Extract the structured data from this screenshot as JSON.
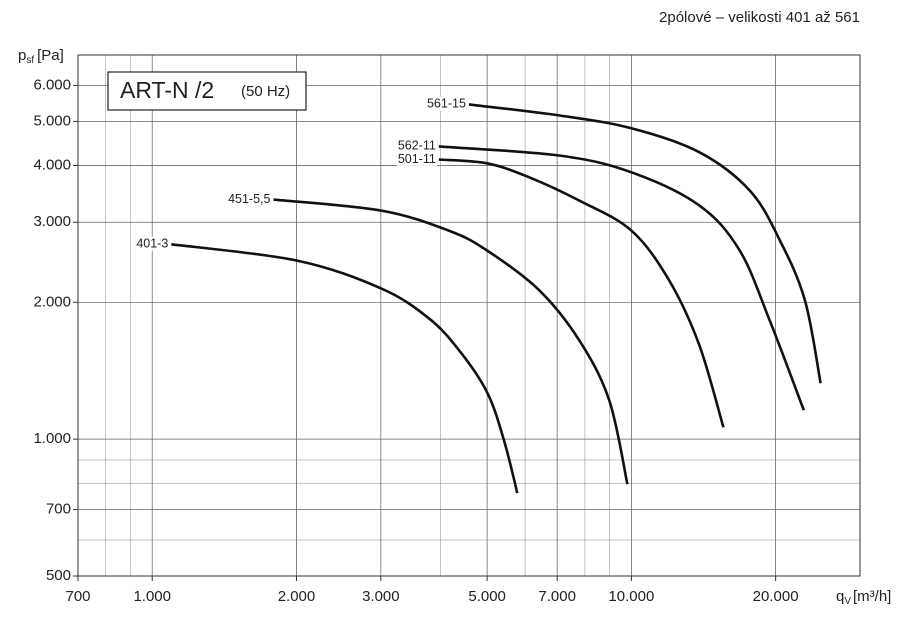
{
  "chart_data": {
    "type": "line",
    "header": "2pólové – velikosti 401 až 561",
    "title": "ART-N /2",
    "subtitle": "(50 Hz)",
    "y_label": {
      "symbol": "p",
      "sub": "sf",
      "unit": "[Pa]"
    },
    "x_label": {
      "symbol": "q",
      "sub": "V",
      "unit": "[m³/h]"
    },
    "x_scale": "log",
    "y_scale": "log",
    "grid": true,
    "xlim": [
      700,
      30000
    ],
    "ylim": [
      500,
      7000
    ],
    "xticks": [
      700,
      {
        "value": 1000,
        "label": "1.000"
      },
      {
        "value": 2000,
        "label": "2.000"
      },
      {
        "value": 3000,
        "label": "3.000"
      },
      {
        "value": 5000,
        "label": "5.000"
      },
      {
        "value": 7000,
        "label": "7.000"
      },
      {
        "value": 10000,
        "label": "10.000"
      },
      {
        "value": 20000,
        "label": "20.000"
      }
    ],
    "yticks": [
      500,
      700,
      {
        "value": 1000,
        "label": "1.000"
      },
      {
        "value": 2000,
        "label": "2.000"
      },
      {
        "value": 3000,
        "label": "3.000"
      },
      {
        "value": 4000,
        "label": "4.000"
      },
      {
        "value": 5000,
        "label": "5.000"
      },
      {
        "value": 6000,
        "label": "6.000"
      }
    ],
    "series": [
      {
        "name": "401-3",
        "color": "#111111",
        "x": [
          1096,
          2000,
          3000,
          3776,
          4366,
          5000,
          5420,
          5780
        ],
        "values": [
          2683,
          2472,
          2147,
          1845,
          1570,
          1268,
          995,
          761
        ]
      },
      {
        "name": "451-5,5",
        "color": "#111111",
        "x": [
          1791,
          3000,
          4158,
          5000,
          6427,
          7780,
          8990,
          9810
        ],
        "values": [
          3365,
          3184,
          2876,
          2600,
          2124,
          1652,
          1218,
          796
        ]
      },
      {
        "name": "501-11",
        "color": "#111111",
        "x": [
          3964,
          5000,
          6120,
          7780,
          10000,
          12000,
          13860,
          15560
        ],
        "values": [
          4122,
          4044,
          3767,
          3350,
          2876,
          2233,
          1610,
          1062
        ]
      },
      {
        "name": "562-11",
        "color": "#111111",
        "x": [
          3964,
          7060,
          10000,
          13860,
          16830,
          19430,
          22900
        ],
        "values": [
          4405,
          4207,
          3865,
          3267,
          2600,
          1827,
          1158
        ]
      },
      {
        "name": "561-15",
        "color": "#111111",
        "x": [
          4581,
          7060,
          10000,
          13860,
          17660,
          20420,
          23030,
          24830
        ],
        "values": [
          5450,
          5154,
          4830,
          4278,
          3524,
          2736,
          2018,
          1328
        ]
      }
    ]
  }
}
